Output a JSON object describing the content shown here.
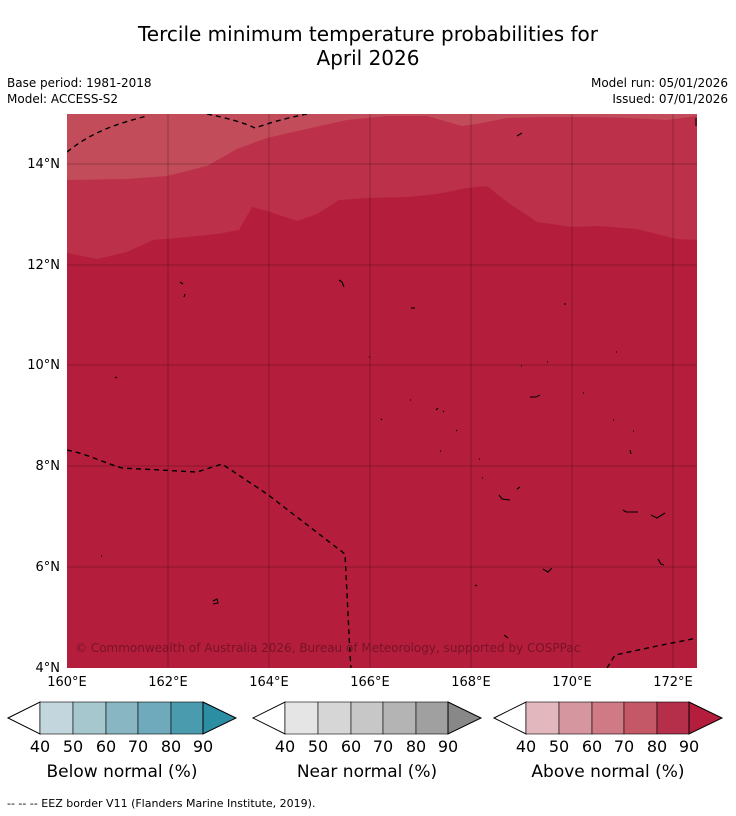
{
  "title_line1": "Tercile minimum temperature probabilities for",
  "title_line2": "April 2026",
  "base_period": "Base period: 1981-2018",
  "model": "Model: ACCESS-S2",
  "model_run": "Model run: 05/01/2026",
  "issued": "Issued: 07/01/2026",
  "copyright": "© Commonwealth of Australia 2026, Bureau of Meteorology, supported by COSPPac",
  "footer": "-- -- -- EEZ border V11 (Flanders Marine Institute, 2019).",
  "map": {
    "lon_range": [
      160,
      172.5
    ],
    "lat_range": [
      4,
      15
    ],
    "lon_ticks": [
      "160°E",
      "162°E",
      "164°E",
      "166°E",
      "168°E",
      "170°E",
      "172°E"
    ],
    "lat_ticks": [
      "4°N",
      "6°N",
      "8°N",
      "10°N",
      "12°N",
      "14°N"
    ],
    "fill_colors": {
      "90": "#b41e3c",
      "80": "#bc3049",
      "70": "#c24c5a"
    }
  },
  "colorbars": [
    {
      "label": "Below normal (%)",
      "colors": [
        "#c3d6dd",
        "#a7c7cf",
        "#89b6c3",
        "#6eaabb",
        "#4b9bae"
      ],
      "extend": "#2b8ea3"
    },
    {
      "label": "Near normal (%)",
      "colors": [
        "#e5e5e5",
        "#d6d6d6",
        "#c7c7c7",
        "#b4b4b4",
        "#a0a0a0"
      ],
      "extend": "#888888"
    },
    {
      "label": "Above normal (%)",
      "colors": [
        "#e2b7be",
        "#d6969f",
        "#cf7a85",
        "#c55867",
        "#b62f4a"
      ],
      "extend": "#b41e3c"
    }
  ],
  "ticks": [
    "40",
    "50",
    "60",
    "70",
    "80",
    "90"
  ]
}
